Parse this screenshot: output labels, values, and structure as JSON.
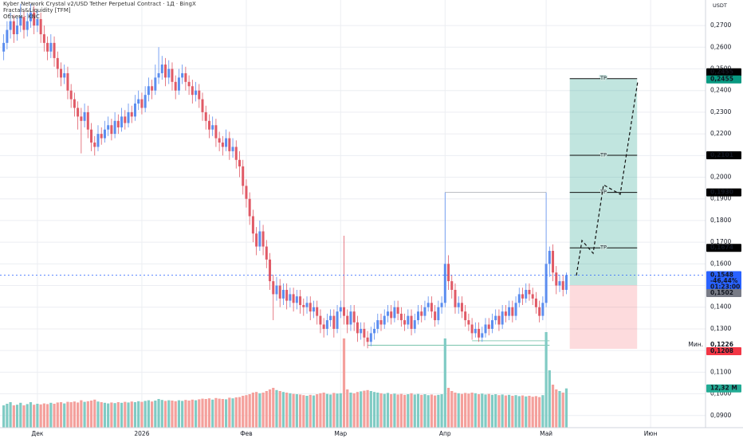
{
  "chart_data": {
    "type": "candlestick",
    "title": "Kyber Network Crystal v2/USD Tether Perpetual Contract · 1Д · BingX",
    "indicators": [
      "Fractals&Liquidity [TFM]",
      "Объем · KNC"
    ],
    "currency": "USDT",
    "up_color": "#5b8def",
    "down_color": "#e05a66",
    "volume_up_color": "#80cbc4",
    "volume_down_color": "#f4a09c",
    "grid": true,
    "xlim": [
      -1.1,
      208.3
    ],
    "ylim": [
      0.0844,
      0.2818
    ],
    "xticks": [
      {
        "value": 10,
        "label": "Дек"
      },
      {
        "value": 41,
        "label": "2026"
      },
      {
        "value": 72,
        "label": "Фев"
      },
      {
        "value": 100,
        "label": "Мар"
      },
      {
        "value": 131,
        "label": "Апр"
      },
      {
        "value": 161,
        "label": "Май"
      },
      {
        "value": 192,
        "label": "Июн"
      }
    ],
    "yticks": [
      {
        "value": 0.27,
        "label": "0,2700"
      },
      {
        "value": 0.26,
        "label": "0,2600"
      },
      {
        "value": 0.25,
        "label": "0,2500"
      },
      {
        "value": 0.24,
        "label": "0,2400"
      },
      {
        "value": 0.23,
        "label": "0,2300"
      },
      {
        "value": 0.22,
        "label": "0,2200"
      },
      {
        "value": 0.21,
        "label": "0,2100"
      },
      {
        "value": 0.2,
        "label": "0,2000"
      },
      {
        "value": 0.19,
        "label": "0,1900"
      },
      {
        "value": 0.18,
        "label": "0,1800"
      },
      {
        "value": 0.17,
        "label": "0,1700"
      },
      {
        "value": 0.16,
        "label": "0,1600"
      },
      {
        "value": 0.15,
        "label": "0,1500"
      },
      {
        "value": 0.14,
        "label": "0,1400"
      },
      {
        "value": 0.13,
        "label": "0,1300"
      },
      {
        "value": 0.12,
        "label": "0,1200"
      },
      {
        "value": 0.11,
        "label": "0,1100"
      },
      {
        "value": 0.1,
        "label": "0,1000"
      },
      {
        "value": 0.09,
        "label": "0,0900"
      }
    ],
    "candles": [
      [
        0.258,
        0.266,
        0.254,
        0.262
      ],
      [
        0.262,
        0.272,
        0.259,
        0.268
      ],
      [
        0.268,
        0.276,
        0.264,
        0.272
      ],
      [
        0.272,
        0.275,
        0.262,
        0.266
      ],
      [
        0.266,
        0.274,
        0.263,
        0.27
      ],
      [
        0.27,
        0.28,
        0.267,
        0.274
      ],
      [
        0.274,
        0.277,
        0.264,
        0.268
      ],
      [
        0.268,
        0.276,
        0.265,
        0.272
      ],
      [
        0.272,
        0.28,
        0.269,
        0.276
      ],
      [
        0.276,
        0.279,
        0.266,
        0.27
      ],
      [
        0.27,
        0.277,
        0.267,
        0.273
      ],
      [
        0.273,
        0.276,
        0.262,
        0.266
      ],
      [
        0.266,
        0.27,
        0.258,
        0.262
      ],
      [
        0.262,
        0.265,
        0.254,
        0.258
      ],
      [
        0.258,
        0.266,
        0.255,
        0.262
      ],
      [
        0.262,
        0.265,
        0.251,
        0.255
      ],
      [
        0.255,
        0.258,
        0.246,
        0.25
      ],
      [
        0.25,
        0.253,
        0.242,
        0.246
      ],
      [
        0.246,
        0.252,
        0.243,
        0.248
      ],
      [
        0.248,
        0.251,
        0.236,
        0.24
      ],
      [
        0.24,
        0.243,
        0.232,
        0.236
      ],
      [
        0.236,
        0.239,
        0.228,
        0.232
      ],
      [
        0.232,
        0.235,
        0.222,
        0.228
      ],
      [
        0.228,
        0.232,
        0.211,
        0.226
      ],
      [
        0.226,
        0.234,
        0.223,
        0.23
      ],
      [
        0.23,
        0.233,
        0.218,
        0.222
      ],
      [
        0.222,
        0.225,
        0.212,
        0.216
      ],
      [
        0.216,
        0.219,
        0.21,
        0.214
      ],
      [
        0.214,
        0.224,
        0.212,
        0.22
      ],
      [
        0.22,
        0.223,
        0.215,
        0.218
      ],
      [
        0.218,
        0.226,
        0.216,
        0.222
      ],
      [
        0.222,
        0.228,
        0.219,
        0.224
      ],
      [
        0.224,
        0.227,
        0.217,
        0.22
      ],
      [
        0.22,
        0.23,
        0.218,
        0.226
      ],
      [
        0.226,
        0.229,
        0.22,
        0.223
      ],
      [
        0.223,
        0.232,
        0.221,
        0.228
      ],
      [
        0.228,
        0.231,
        0.222,
        0.225
      ],
      [
        0.225,
        0.234,
        0.223,
        0.23
      ],
      [
        0.23,
        0.233,
        0.225,
        0.228
      ],
      [
        0.228,
        0.238,
        0.226,
        0.234
      ],
      [
        0.234,
        0.24,
        0.231,
        0.236
      ],
      [
        0.236,
        0.239,
        0.229,
        0.232
      ],
      [
        0.232,
        0.242,
        0.23,
        0.238
      ],
      [
        0.238,
        0.246,
        0.235,
        0.242
      ],
      [
        0.242,
        0.245,
        0.236,
        0.24
      ],
      [
        0.24,
        0.252,
        0.238,
        0.246
      ],
      [
        0.246,
        0.26,
        0.243,
        0.248
      ],
      [
        0.248,
        0.256,
        0.245,
        0.252
      ],
      [
        0.252,
        0.255,
        0.242,
        0.246
      ],
      [
        0.246,
        0.254,
        0.243,
        0.25
      ],
      [
        0.25,
        0.253,
        0.24,
        0.244
      ],
      [
        0.244,
        0.247,
        0.236,
        0.24
      ],
      [
        0.24,
        0.25,
        0.238,
        0.246
      ],
      [
        0.246,
        0.252,
        0.243,
        0.248
      ],
      [
        0.248,
        0.251,
        0.24,
        0.244
      ],
      [
        0.244,
        0.247,
        0.238,
        0.242
      ],
      [
        0.242,
        0.245,
        0.234,
        0.238
      ],
      [
        0.238,
        0.244,
        0.235,
        0.24
      ],
      [
        0.24,
        0.243,
        0.232,
        0.236
      ],
      [
        0.236,
        0.239,
        0.226,
        0.23
      ],
      [
        0.23,
        0.233,
        0.222,
        0.226
      ],
      [
        0.226,
        0.229,
        0.218,
        0.222
      ],
      [
        0.222,
        0.228,
        0.219,
        0.224
      ],
      [
        0.224,
        0.227,
        0.214,
        0.218
      ],
      [
        0.218,
        0.221,
        0.212,
        0.216
      ],
      [
        0.216,
        0.219,
        0.21,
        0.214
      ],
      [
        0.214,
        0.222,
        0.212,
        0.218
      ],
      [
        0.218,
        0.221,
        0.208,
        0.212
      ],
      [
        0.212,
        0.218,
        0.209,
        0.214
      ],
      [
        0.214,
        0.217,
        0.204,
        0.208
      ],
      [
        0.208,
        0.212,
        0.2,
        0.205
      ],
      [
        0.205,
        0.208,
        0.192,
        0.196
      ],
      [
        0.196,
        0.199,
        0.186,
        0.19
      ],
      [
        0.19,
        0.193,
        0.178,
        0.182
      ],
      [
        0.182,
        0.185,
        0.17,
        0.174
      ],
      [
        0.174,
        0.177,
        0.164,
        0.168
      ],
      [
        0.168,
        0.18,
        0.166,
        0.175
      ],
      [
        0.175,
        0.178,
        0.164,
        0.168
      ],
      [
        0.168,
        0.171,
        0.158,
        0.162
      ],
      [
        0.162,
        0.165,
        0.148,
        0.152
      ],
      [
        0.152,
        0.155,
        0.134,
        0.146
      ],
      [
        0.146,
        0.154,
        0.143,
        0.15
      ],
      [
        0.15,
        0.153,
        0.14,
        0.144
      ],
      [
        0.144,
        0.151,
        0.141,
        0.148
      ],
      [
        0.148,
        0.151,
        0.139,
        0.143
      ],
      [
        0.143,
        0.149,
        0.14,
        0.146
      ],
      [
        0.146,
        0.149,
        0.138,
        0.142
      ],
      [
        0.142,
        0.148,
        0.139,
        0.145
      ],
      [
        0.145,
        0.148,
        0.137,
        0.141
      ],
      [
        0.141,
        0.144,
        0.136,
        0.14
      ],
      [
        0.14,
        0.145,
        0.137,
        0.142
      ],
      [
        0.142,
        0.145,
        0.134,
        0.138
      ],
      [
        0.138,
        0.143,
        0.135,
        0.14
      ],
      [
        0.14,
        0.143,
        0.132,
        0.136
      ],
      [
        0.136,
        0.139,
        0.128,
        0.132
      ],
      [
        0.132,
        0.135,
        0.126,
        0.13
      ],
      [
        0.13,
        0.137,
        0.127,
        0.134
      ],
      [
        0.134,
        0.139,
        0.131,
        0.136
      ],
      [
        0.136,
        0.139,
        0.126,
        0.13
      ],
      [
        0.13,
        0.141,
        0.128,
        0.138
      ],
      [
        0.138,
        0.143,
        0.135,
        0.14
      ],
      [
        0.14,
        0.173,
        0.132,
        0.136
      ],
      [
        0.136,
        0.139,
        0.128,
        0.132
      ],
      [
        0.132,
        0.141,
        0.129,
        0.138
      ],
      [
        0.138,
        0.141,
        0.129,
        0.133
      ],
      [
        0.133,
        0.136,
        0.124,
        0.128
      ],
      [
        0.128,
        0.133,
        0.125,
        0.13
      ],
      [
        0.13,
        0.133,
        0.122,
        0.126
      ],
      [
        0.126,
        0.129,
        0.121,
        0.124
      ],
      [
        0.124,
        0.131,
        0.122,
        0.128
      ],
      [
        0.128,
        0.133,
        0.125,
        0.13
      ],
      [
        0.13,
        0.137,
        0.128,
        0.134
      ],
      [
        0.134,
        0.137,
        0.129,
        0.132
      ],
      [
        0.132,
        0.139,
        0.13,
        0.136
      ],
      [
        0.136,
        0.141,
        0.133,
        0.138
      ],
      [
        0.138,
        0.141,
        0.132,
        0.135
      ],
      [
        0.135,
        0.143,
        0.133,
        0.14
      ],
      [
        0.14,
        0.143,
        0.134,
        0.137
      ],
      [
        0.137,
        0.14,
        0.131,
        0.134
      ],
      [
        0.134,
        0.137,
        0.129,
        0.132
      ],
      [
        0.132,
        0.139,
        0.13,
        0.136
      ],
      [
        0.136,
        0.139,
        0.127,
        0.13
      ],
      [
        0.13,
        0.137,
        0.128,
        0.134
      ],
      [
        0.134,
        0.141,
        0.132,
        0.138
      ],
      [
        0.138,
        0.141,
        0.133,
        0.136
      ],
      [
        0.136,
        0.143,
        0.134,
        0.14
      ],
      [
        0.14,
        0.145,
        0.138,
        0.142
      ],
      [
        0.142,
        0.145,
        0.135,
        0.138
      ],
      [
        0.138,
        0.141,
        0.131,
        0.134
      ],
      [
        0.134,
        0.143,
        0.132,
        0.14
      ],
      [
        0.14,
        0.145,
        0.137,
        0.142
      ],
      [
        0.142,
        0.193,
        0.14,
        0.16
      ],
      [
        0.16,
        0.164,
        0.148,
        0.152
      ],
      [
        0.152,
        0.155,
        0.144,
        0.148
      ],
      [
        0.148,
        0.151,
        0.137,
        0.14
      ],
      [
        0.14,
        0.145,
        0.137,
        0.142
      ],
      [
        0.142,
        0.145,
        0.135,
        0.138
      ],
      [
        0.138,
        0.141,
        0.131,
        0.134
      ],
      [
        0.134,
        0.137,
        0.129,
        0.132
      ],
      [
        0.132,
        0.135,
        0.125,
        0.128
      ],
      [
        0.128,
        0.133,
        0.126,
        0.13
      ],
      [
        0.13,
        0.133,
        0.124,
        0.126
      ],
      [
        0.126,
        0.131,
        0.124,
        0.128
      ],
      [
        0.128,
        0.135,
        0.126,
        0.132
      ],
      [
        0.132,
        0.135,
        0.127,
        0.13
      ],
      [
        0.13,
        0.137,
        0.128,
        0.134
      ],
      [
        0.134,
        0.139,
        0.132,
        0.136
      ],
      [
        0.136,
        0.139,
        0.129,
        0.132
      ],
      [
        0.132,
        0.141,
        0.13,
        0.138
      ],
      [
        0.138,
        0.141,
        0.133,
        0.136
      ],
      [
        0.136,
        0.143,
        0.134,
        0.14
      ],
      [
        0.14,
        0.143,
        0.133,
        0.136
      ],
      [
        0.136,
        0.145,
        0.134,
        0.142
      ],
      [
        0.142,
        0.149,
        0.14,
        0.146
      ],
      [
        0.146,
        0.149,
        0.141,
        0.144
      ],
      [
        0.144,
        0.151,
        0.142,
        0.148
      ],
      [
        0.148,
        0.151,
        0.143,
        0.146
      ],
      [
        0.146,
        0.149,
        0.141,
        0.144
      ],
      [
        0.144,
        0.147,
        0.137,
        0.14
      ],
      [
        0.14,
        0.143,
        0.133,
        0.136
      ],
      [
        0.136,
        0.145,
        0.134,
        0.142
      ],
      [
        0.142,
        0.193,
        0.14,
        0.16
      ],
      [
        0.16,
        0.168,
        0.154,
        0.166
      ],
      [
        0.166,
        0.169,
        0.152,
        0.156
      ],
      [
        0.156,
        0.159,
        0.146,
        0.15
      ],
      [
        0.15,
        0.155,
        0.147,
        0.152
      ],
      [
        0.152,
        0.155,
        0.145,
        0.148
      ],
      [
        0.148,
        0.156,
        0.146,
        0.1548
      ]
    ],
    "volume": {
      "values": [
        7,
        7.5,
        8,
        7,
        7.2,
        7.8,
        7,
        7.4,
        8,
        7.2,
        7.5,
        7.3,
        7.6,
        7.4,
        7.8,
        7.5,
        7.9,
        8,
        7.6,
        8.1,
        8,
        8.2,
        7.9,
        8.6,
        8.1,
        8.3,
        8.5,
        8.8,
        8.2,
        8,
        7.8,
        7.6,
        7.9,
        7.7,
        8,
        7.8,
        8.1,
        7.9,
        8.2,
        8,
        8.3,
        8.1,
        8.4,
        8.6,
        8.2,
        8.5,
        9,
        8.7,
        8.4,
        8.6,
        8.5,
        8.3,
        8.6,
        8.4,
        8.7,
        8.5,
        8.8,
        8.6,
        8.9,
        9.1,
        9,
        9.2,
        8.8,
        9.3,
        9.1,
        9,
        8.9,
        9.4,
        9.2,
        9.5,
        9.6,
        10,
        10.2,
        10.5,
        11,
        11.2,
        10.8,
        11,
        11.5,
        12,
        12.5,
        11.8,
        11.5,
        11.2,
        11,
        10.8,
        10.6,
        10.5,
        10.4,
        10.2,
        10,
        10.3,
        10.1,
        10.5,
        10.8,
        11,
        10.6,
        10.4,
        10.9,
        10.7,
        10.8,
        28,
        12,
        11,
        10.8,
        11.2,
        11.4,
        11.6,
        11.8,
        11.5,
        11.2,
        11,
        10.8,
        10.6,
        10.9,
        10.5,
        10.7,
        10.4,
        10.6,
        10.3,
        10.5,
        10.8,
        10.4,
        10.6,
        10.3,
        10.5,
        10.2,
        10.4,
        10.1,
        10.3,
        10.5,
        28,
        12.5,
        11.5,
        11,
        10.8,
        10.6,
        10.9,
        10.7,
        11,
        10.8,
        10.5,
        10.7,
        10.4,
        10.6,
        10.3,
        10.5,
        10.2,
        10.4,
        10.1,
        10.3,
        10,
        10.2,
        9.9,
        10.1,
        9.8,
        10,
        9.7,
        9.9,
        9.6,
        10.2,
        30,
        18,
        13.5,
        12,
        11.5,
        11,
        12.32
      ],
      "last_label": "12,32 M"
    },
    "levels": [
      {
        "from": 108,
        "to": 162,
        "value": 0.1225
      },
      {
        "from": 139,
        "to": 162,
        "value": 0.1245
      },
      {
        "from": 131,
        "to": 161,
        "value": 0.193
      }
    ],
    "position": {
      "from": 168,
      "to": 188,
      "entry": {
        "value": 0.1502,
        "label": "0,1502"
      },
      "stop": {
        "value": 0.1208,
        "label": "0,1208"
      },
      "target_name": "TP",
      "targets": [
        {
          "value": 0.2455,
          "label": "0,2455"
        },
        {
          "value": 0.2101,
          "label": "0,2101"
        },
        {
          "value": 0.193,
          "label": "0,1930"
        },
        {
          "value": 0.1674,
          "label": "0,1674"
        }
      ],
      "target_flag": {
        "value": 0.2455,
        "label": "0,2455"
      }
    },
    "last_price": {
      "value": 0.1548,
      "label": "0,1548",
      "change": "-46,44%",
      "countdown": "01:23:00"
    },
    "low_mark": {
      "value": 0.1226,
      "label": "0,1226",
      "name": "Мин."
    }
  }
}
